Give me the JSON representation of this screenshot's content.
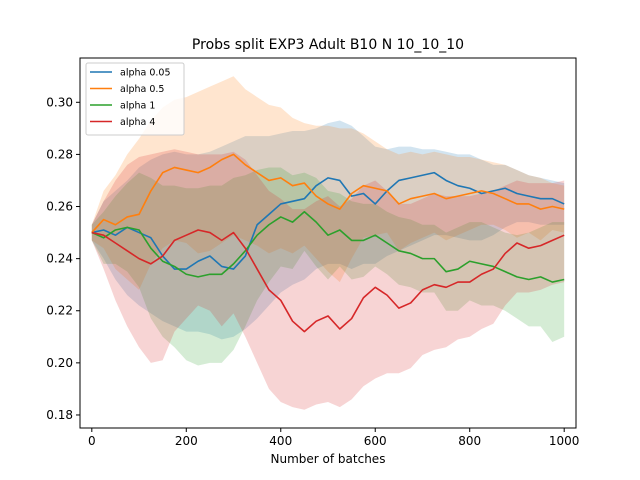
{
  "chart_data": {
    "type": "line",
    "title": "Probs split EXP3 Adult B10 N 10_10_10",
    "xlabel": "Number of batches",
    "ylabel": "",
    "xlim": [
      -25,
      1025
    ],
    "ylim": [
      0.175,
      0.317
    ],
    "xticks": [
      0,
      200,
      400,
      600,
      800,
      1000
    ],
    "yticks": [
      0.18,
      0.2,
      0.22,
      0.24,
      0.26,
      0.28,
      0.3
    ],
    "xtick_labels": [
      "0",
      "200",
      "400",
      "600",
      "800",
      "1000"
    ],
    "ytick_labels": [
      "0.18",
      "0.20",
      "0.22",
      "0.24",
      "0.26",
      "0.28",
      "0.30"
    ],
    "grid": false,
    "legend": {
      "placement": "top-left",
      "entries": [
        "alpha 0.05",
        "alpha 0.5",
        "alpha 1",
        "alpha 4"
      ]
    },
    "shaded_band": "standard deviation band around each mean line",
    "series": [
      {
        "name": "alpha 0.05",
        "color": "#1f77b4",
        "x": [
          0,
          25,
          50,
          75,
          100,
          125,
          150,
          175,
          200,
          225,
          250,
          275,
          300,
          325,
          350,
          375,
          400,
          425,
          450,
          475,
          500,
          525,
          550,
          575,
          600,
          625,
          650,
          675,
          700,
          725,
          750,
          775,
          800,
          825,
          850,
          875,
          900,
          925,
          950,
          975,
          1000
        ],
        "y": [
          0.25,
          0.251,
          0.249,
          0.252,
          0.25,
          0.248,
          0.241,
          0.236,
          0.236,
          0.239,
          0.241,
          0.237,
          0.236,
          0.241,
          0.253,
          0.257,
          0.261,
          0.262,
          0.263,
          0.268,
          0.271,
          0.27,
          0.264,
          0.265,
          0.261,
          0.266,
          0.27,
          0.271,
          0.272,
          0.273,
          0.27,
          0.268,
          0.267,
          0.265,
          0.266,
          0.267,
          0.265,
          0.264,
          0.263,
          0.263,
          0.261
        ],
        "band_upper": [
          0.253,
          0.262,
          0.266,
          0.27,
          0.275,
          0.278,
          0.28,
          0.281,
          0.28,
          0.28,
          0.281,
          0.283,
          0.285,
          0.287,
          0.287,
          0.287,
          0.288,
          0.289,
          0.289,
          0.29,
          0.292,
          0.293,
          0.291,
          0.287,
          0.283,
          0.282,
          0.283,
          0.283,
          0.282,
          0.282,
          0.281,
          0.28,
          0.28,
          0.278,
          0.276,
          0.276,
          0.274,
          0.272,
          0.271,
          0.27,
          0.269
        ],
        "band_lower": [
          0.247,
          0.24,
          0.232,
          0.226,
          0.222,
          0.219,
          0.216,
          0.214,
          0.212,
          0.212,
          0.211,
          0.209,
          0.21,
          0.213,
          0.217,
          0.222,
          0.227,
          0.23,
          0.232,
          0.236,
          0.238,
          0.238,
          0.236,
          0.238,
          0.238,
          0.241,
          0.243,
          0.245,
          0.247,
          0.249,
          0.249,
          0.248,
          0.247,
          0.247,
          0.249,
          0.252,
          0.254,
          0.254,
          0.253,
          0.253,
          0.253
        ]
      },
      {
        "name": "alpha 0.5",
        "color": "#ff7f0e",
        "x": [
          0,
          25,
          50,
          75,
          100,
          125,
          150,
          175,
          200,
          225,
          250,
          275,
          300,
          325,
          350,
          375,
          400,
          425,
          450,
          475,
          500,
          525,
          550,
          575,
          600,
          625,
          650,
          675,
          700,
          725,
          750,
          775,
          800,
          825,
          850,
          875,
          900,
          925,
          950,
          975,
          1000
        ],
        "y": [
          0.25,
          0.255,
          0.253,
          0.256,
          0.257,
          0.266,
          0.273,
          0.275,
          0.274,
          0.273,
          0.275,
          0.278,
          0.28,
          0.276,
          0.273,
          0.27,
          0.271,
          0.268,
          0.269,
          0.264,
          0.261,
          0.259,
          0.265,
          0.268,
          0.267,
          0.266,
          0.261,
          0.263,
          0.264,
          0.265,
          0.263,
          0.264,
          0.265,
          0.266,
          0.265,
          0.263,
          0.261,
          0.261,
          0.259,
          0.26,
          0.259
        ],
        "band_upper": [
          0.253,
          0.266,
          0.272,
          0.28,
          0.286,
          0.293,
          0.298,
          0.301,
          0.302,
          0.304,
          0.306,
          0.308,
          0.31,
          0.305,
          0.302,
          0.299,
          0.298,
          0.294,
          0.292,
          0.291,
          0.291,
          0.29,
          0.29,
          0.288,
          0.285,
          0.282,
          0.28,
          0.281,
          0.28,
          0.281,
          0.28,
          0.279,
          0.279,
          0.278,
          0.277,
          0.276,
          0.274,
          0.272,
          0.271,
          0.269,
          0.268
        ],
        "band_lower": [
          0.247,
          0.244,
          0.236,
          0.232,
          0.228,
          0.238,
          0.244,
          0.247,
          0.246,
          0.242,
          0.243,
          0.246,
          0.249,
          0.247,
          0.245,
          0.242,
          0.244,
          0.242,
          0.245,
          0.24,
          0.235,
          0.231,
          0.24,
          0.248,
          0.249,
          0.25,
          0.243,
          0.246,
          0.248,
          0.25,
          0.247,
          0.249,
          0.251,
          0.253,
          0.253,
          0.251,
          0.248,
          0.25,
          0.247,
          0.251,
          0.25
        ]
      },
      {
        "name": "alpha 1",
        "color": "#2ca02c",
        "x": [
          0,
          25,
          50,
          75,
          100,
          125,
          150,
          175,
          200,
          225,
          250,
          275,
          300,
          325,
          350,
          375,
          400,
          425,
          450,
          475,
          500,
          525,
          550,
          575,
          600,
          625,
          650,
          675,
          700,
          725,
          750,
          775,
          800,
          825,
          850,
          875,
          900,
          925,
          950,
          975,
          1000
        ],
        "y": [
          0.25,
          0.248,
          0.251,
          0.252,
          0.251,
          0.244,
          0.239,
          0.237,
          0.234,
          0.233,
          0.234,
          0.234,
          0.238,
          0.243,
          0.249,
          0.253,
          0.256,
          0.254,
          0.258,
          0.254,
          0.249,
          0.251,
          0.247,
          0.247,
          0.249,
          0.246,
          0.243,
          0.242,
          0.24,
          0.24,
          0.235,
          0.236,
          0.239,
          0.238,
          0.237,
          0.235,
          0.233,
          0.232,
          0.233,
          0.231,
          0.232
        ],
        "band_upper": [
          0.253,
          0.258,
          0.264,
          0.269,
          0.273,
          0.271,
          0.268,
          0.268,
          0.267,
          0.267,
          0.268,
          0.268,
          0.271,
          0.272,
          0.274,
          0.275,
          0.275,
          0.272,
          0.273,
          0.271,
          0.266,
          0.265,
          0.262,
          0.261,
          0.261,
          0.258,
          0.256,
          0.255,
          0.253,
          0.253,
          0.25,
          0.252,
          0.254,
          0.254,
          0.252,
          0.25,
          0.249,
          0.25,
          0.252,
          0.254,
          0.254
        ],
        "band_lower": [
          0.247,
          0.238,
          0.238,
          0.235,
          0.229,
          0.217,
          0.21,
          0.206,
          0.201,
          0.199,
          0.2,
          0.2,
          0.205,
          0.214,
          0.224,
          0.231,
          0.237,
          0.236,
          0.243,
          0.237,
          0.232,
          0.237,
          0.232,
          0.233,
          0.237,
          0.234,
          0.23,
          0.229,
          0.227,
          0.227,
          0.22,
          0.22,
          0.224,
          0.222,
          0.222,
          0.22,
          0.217,
          0.214,
          0.214,
          0.208,
          0.21
        ]
      },
      {
        "name": "alpha 4",
        "color": "#d62728",
        "x": [
          0,
          25,
          50,
          75,
          100,
          125,
          150,
          175,
          200,
          225,
          250,
          275,
          300,
          325,
          350,
          375,
          400,
          425,
          450,
          475,
          500,
          525,
          550,
          575,
          600,
          625,
          650,
          675,
          700,
          725,
          750,
          775,
          800,
          825,
          850,
          875,
          900,
          925,
          950,
          975,
          1000
        ],
        "y": [
          0.25,
          0.249,
          0.246,
          0.243,
          0.24,
          0.238,
          0.241,
          0.247,
          0.249,
          0.251,
          0.25,
          0.247,
          0.25,
          0.244,
          0.236,
          0.228,
          0.224,
          0.216,
          0.212,
          0.216,
          0.218,
          0.213,
          0.217,
          0.225,
          0.229,
          0.226,
          0.221,
          0.223,
          0.228,
          0.23,
          0.229,
          0.231,
          0.231,
          0.234,
          0.236,
          0.242,
          0.246,
          0.244,
          0.245,
          0.247,
          0.249
        ],
        "band_upper": [
          0.253,
          0.262,
          0.27,
          0.276,
          0.279,
          0.28,
          0.281,
          0.282,
          0.281,
          0.28,
          0.28,
          0.28,
          0.281,
          0.278,
          0.272,
          0.266,
          0.263,
          0.259,
          0.259,
          0.262,
          0.264,
          0.26,
          0.263,
          0.268,
          0.27,
          0.266,
          0.261,
          0.261,
          0.263,
          0.265,
          0.264,
          0.264,
          0.264,
          0.265,
          0.266,
          0.268,
          0.27,
          0.269,
          0.269,
          0.269,
          0.27
        ],
        "band_lower": [
          0.247,
          0.236,
          0.224,
          0.214,
          0.206,
          0.2,
          0.201,
          0.212,
          0.217,
          0.222,
          0.22,
          0.214,
          0.219,
          0.21,
          0.2,
          0.19,
          0.185,
          0.183,
          0.182,
          0.184,
          0.185,
          0.183,
          0.186,
          0.191,
          0.194,
          0.196,
          0.196,
          0.198,
          0.203,
          0.205,
          0.206,
          0.209,
          0.21,
          0.213,
          0.215,
          0.222,
          0.227,
          0.227,
          0.228,
          0.23,
          0.231
        ]
      }
    ]
  }
}
